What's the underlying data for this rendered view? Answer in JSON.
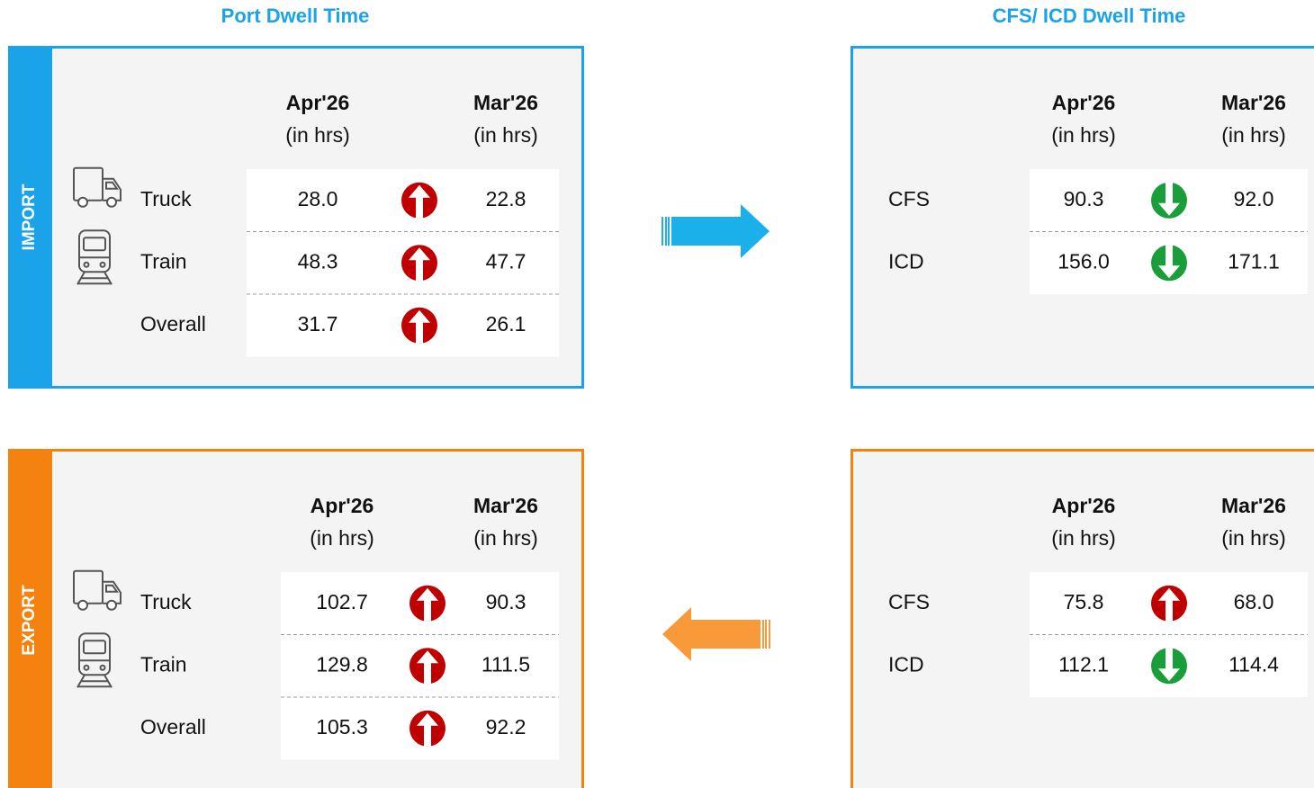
{
  "titles": [
    "Port Dwell Time",
    "CFS/ ICD Dwell Time"
  ],
  "sections": [
    {
      "name": "IMPORT",
      "color": "#1aa3e8",
      "flow": "right",
      "flow_color": "#1bb0ea",
      "port": {
        "columns": [
          {
            "period": "Apr'26",
            "unit": "(in hrs)"
          },
          {
            "period": "Mar'26",
            "unit": "(in hrs)"
          }
        ],
        "rows": [
          {
            "label": "Truck",
            "icon": "truck",
            "current": "28.0",
            "previous": "22.8",
            "trend": "up"
          },
          {
            "label": "Train",
            "icon": "train",
            "current": "48.3",
            "previous": "47.7",
            "trend": "up"
          },
          {
            "label": "Overall",
            "icon": null,
            "current": "31.7",
            "previous": "26.1",
            "trend": "up"
          }
        ]
      },
      "cfs": {
        "columns": [
          {
            "period": "Apr'26",
            "unit": "(in hrs)"
          },
          {
            "period": "Mar'26",
            "unit": "(in hrs)"
          }
        ],
        "rows": [
          {
            "label": "CFS",
            "current": "90.3",
            "previous": "92.0",
            "trend": "down"
          },
          {
            "label": "ICD",
            "current": "156.0",
            "previous": "171.1",
            "trend": "down"
          }
        ]
      }
    },
    {
      "name": "EXPORT",
      "color": "#f5820f",
      "flow": "left",
      "flow_color": "#f89a3a",
      "port": {
        "columns": [
          {
            "period": "Apr'26",
            "unit": "(in hrs)"
          },
          {
            "period": "Mar'26",
            "unit": "(in hrs)"
          }
        ],
        "rows": [
          {
            "label": "Truck",
            "icon": "truck",
            "current": "102.7",
            "previous": "90.3",
            "trend": "up"
          },
          {
            "label": "Train",
            "icon": "train",
            "current": "129.8",
            "previous": "111.5",
            "trend": "up"
          },
          {
            "label": "Overall",
            "icon": null,
            "current": "105.3",
            "previous": "92.2",
            "trend": "up"
          }
        ]
      },
      "cfs": {
        "columns": [
          {
            "period": "Apr'26",
            "unit": "(in hrs)"
          },
          {
            "period": "Mar'26",
            "unit": "(in hrs)"
          }
        ],
        "rows": [
          {
            "label": "CFS",
            "current": "75.8",
            "previous": "68.0",
            "trend": "up"
          },
          {
            "label": "ICD",
            "current": "112.1",
            "previous": "114.4",
            "trend": "down"
          }
        ]
      }
    }
  ]
}
